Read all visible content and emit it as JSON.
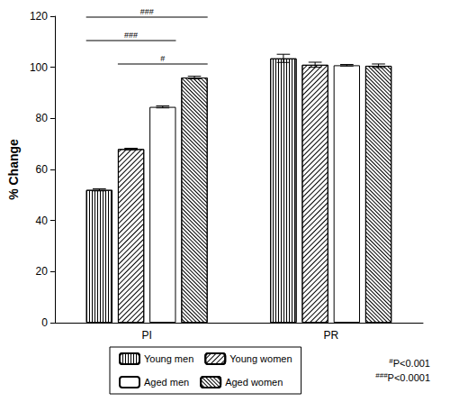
{
  "chart_data": {
    "type": "bar",
    "y_label": "% Change",
    "categories": [
      "PI",
      "PR"
    ],
    "series": [
      {
        "name": "Young men",
        "color": "#ffffff",
        "values": [
          52,
          103.5
        ],
        "errors": [
          0.4,
          1.6
        ]
      },
      {
        "name": "Young women",
        "color": "#ffffff",
        "values": [
          68,
          101
        ],
        "errors": [
          0.3,
          1.0
        ]
      },
      {
        "name": "Aged men",
        "color": "#ffffff",
        "values": [
          84.5,
          100.8
        ],
        "errors": [
          0.4,
          0.3
        ]
      },
      {
        "name": "Aged women",
        "color": "#ffffff",
        "values": [
          96,
          100.6
        ],
        "errors": [
          0.5,
          0.7
        ]
      }
    ],
    "ylim": [
      0,
      120
    ],
    "yticks": [
      0,
      20,
      40,
      60,
      80,
      100,
      120
    ],
    "grid": false,
    "legend": "bottom",
    "annotations": [
      {
        "category": "PI",
        "from": "Young men",
        "to": "Aged women",
        "label": "###"
      },
      {
        "category": "PI",
        "from": "Young men",
        "to": "Aged men",
        "label": "###"
      },
      {
        "category": "PI",
        "from": "Young women",
        "to": "Aged women",
        "label": "#"
      }
    ],
    "notes": [
      {
        "mark": "#",
        "text": "P<0.001"
      },
      {
        "mark": "###",
        "text": "P<0.0001"
      }
    ]
  }
}
